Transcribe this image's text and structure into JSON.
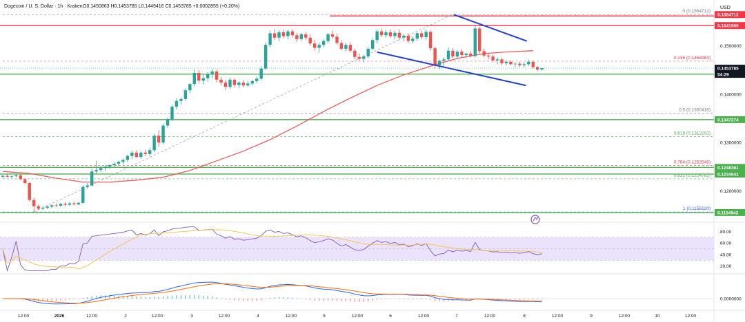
{
  "header": {
    "title": "Dogecoin / U. S. Dollar · 1h · Kraken",
    "ohlc": "O0.1450863 H0.1453785 L0.1449416 C0.1453785 +0.0002855 (+0.20%)",
    "currency": "USD"
  },
  "colors": {
    "bull": "#26a69a",
    "bear": "#ef5350",
    "red_line": "#f23645",
    "green_line": "#4caf50",
    "blue_line": "#1f3fd6",
    "ma_line": "#f05a5a",
    "fib_dash": "#b0b0b0",
    "rsi_band": "#e6dcfb",
    "rsi_line": "#7e57c2",
    "rsi_signal": "#f5c242",
    "macd_line": "#2962ff",
    "signal_line": "#ff6d00"
  },
  "chart_data": [
    {
      "type": "line",
      "name": "price",
      "x_labels": [
        "12:00",
        "2026",
        "12:00",
        "2",
        "12:00",
        "3",
        "12:00",
        "4",
        "12:00",
        "5",
        "12:00",
        "6",
        "12:00",
        "7",
        "12:00",
        "8",
        "12:00",
        "9",
        "12:00",
        "10",
        "12:00"
      ],
      "y_ticks": [
        "0.1500000",
        "0.1400000",
        "0.1300000",
        "0.1200000"
      ],
      "ylim": [
        0.1142,
        0.1575
      ],
      "candles": [
        [
          0.1229,
          0.1233,
          0.1227,
          0.1231
        ],
        [
          0.1231,
          0.1234,
          0.1228,
          0.1229
        ],
        [
          0.1229,
          0.1232,
          0.1226,
          0.123
        ],
        [
          0.123,
          0.1236,
          0.1228,
          0.1232
        ],
        [
          0.1232,
          0.1234,
          0.1222,
          0.1224
        ],
        [
          0.1224,
          0.1226,
          0.1214,
          0.1216
        ],
        [
          0.1216,
          0.1218,
          0.1178,
          0.1181
        ],
        [
          0.1181,
          0.1186,
          0.1156,
          0.1168
        ],
        [
          0.1168,
          0.1172,
          0.116,
          0.1163
        ],
        [
          0.1163,
          0.1168,
          0.116,
          0.1165
        ],
        [
          0.1165,
          0.117,
          0.1162,
          0.1167
        ],
        [
          0.1167,
          0.1172,
          0.1164,
          0.117
        ],
        [
          0.117,
          0.1174,
          0.1166,
          0.1169
        ],
        [
          0.1169,
          0.1175,
          0.1167,
          0.1173
        ],
        [
          0.1173,
          0.1176,
          0.1168,
          0.1171
        ],
        [
          0.1171,
          0.1176,
          0.1169,
          0.1174
        ],
        [
          0.1174,
          0.1177,
          0.117,
          0.1172
        ],
        [
          0.1172,
          0.1177,
          0.117,
          0.1175
        ],
        [
          0.1175,
          0.1212,
          0.1173,
          0.1208
        ],
        [
          0.1208,
          0.1216,
          0.1204,
          0.1211
        ],
        [
          0.1211,
          0.1246,
          0.1209,
          0.124
        ],
        [
          0.124,
          0.1262,
          0.1236,
          0.1243
        ],
        [
          0.1243,
          0.1252,
          0.1238,
          0.1247
        ],
        [
          0.1247,
          0.1254,
          0.1241,
          0.125
        ],
        [
          0.125,
          0.1255,
          0.1246,
          0.1253
        ],
        [
          0.1253,
          0.1259,
          0.1249,
          0.1256
        ],
        [
          0.1256,
          0.1262,
          0.1251,
          0.126
        ],
        [
          0.126,
          0.1266,
          0.1255,
          0.1264
        ],
        [
          0.1264,
          0.1275,
          0.126,
          0.1272
        ],
        [
          0.1272,
          0.1283,
          0.1266,
          0.1279
        ],
        [
          0.1279,
          0.1284,
          0.1268,
          0.127
        ],
        [
          0.127,
          0.1282,
          0.1266,
          0.1279
        ],
        [
          0.1279,
          0.1285,
          0.1272,
          0.1276
        ],
        [
          0.1276,
          0.129,
          0.1271,
          0.1284
        ],
        [
          0.1284,
          0.1318,
          0.128,
          0.1314
        ],
        [
          0.1314,
          0.1325,
          0.1292,
          0.13
        ],
        [
          0.13,
          0.1338,
          0.1296,
          0.1335
        ],
        [
          0.1335,
          0.1352,
          0.133,
          0.1348
        ],
        [
          0.1348,
          0.1378,
          0.1344,
          0.1374
        ],
        [
          0.1374,
          0.1392,
          0.1368,
          0.1386
        ],
        [
          0.1386,
          0.1394,
          0.1378,
          0.139
        ],
        [
          0.139,
          0.1412,
          0.1386,
          0.1408
        ],
        [
          0.1408,
          0.1423,
          0.1402,
          0.1421
        ],
        [
          0.1421,
          0.1452,
          0.1416,
          0.1444
        ],
        [
          0.1444,
          0.145,
          0.1422,
          0.1428
        ],
        [
          0.1428,
          0.144,
          0.142,
          0.1433
        ],
        [
          0.1433,
          0.1446,
          0.1426,
          0.1441
        ],
        [
          0.1441,
          0.1452,
          0.1432,
          0.1447
        ],
        [
          0.1447,
          0.1451,
          0.1424,
          0.143
        ],
        [
          0.143,
          0.1436,
          0.1418,
          0.1424
        ],
        [
          0.1424,
          0.143,
          0.1408,
          0.1415
        ],
        [
          0.1415,
          0.1434,
          0.1411,
          0.143
        ],
        [
          0.143,
          0.1433,
          0.1414,
          0.1419
        ],
        [
          0.1419,
          0.1427,
          0.1412,
          0.1424
        ],
        [
          0.1424,
          0.143,
          0.1414,
          0.1418
        ],
        [
          0.1418,
          0.1427,
          0.1415,
          0.1422
        ],
        [
          0.1422,
          0.143,
          0.1418,
          0.1427
        ],
        [
          0.1427,
          0.1436,
          0.1423,
          0.1432
        ],
        [
          0.1432,
          0.1458,
          0.1428,
          0.1453
        ],
        [
          0.1453,
          0.1508,
          0.145,
          0.1502
        ],
        [
          0.1502,
          0.1532,
          0.1497,
          0.1526
        ],
        [
          0.1526,
          0.1535,
          0.1512,
          0.1517
        ],
        [
          0.1517,
          0.1532,
          0.151,
          0.1528
        ],
        [
          0.1528,
          0.1534,
          0.1515,
          0.152
        ],
        [
          0.152,
          0.1534,
          0.1514,
          0.153
        ],
        [
          0.153,
          0.1535,
          0.1517,
          0.1522
        ],
        [
          0.1522,
          0.1527,
          0.1508,
          0.1514
        ],
        [
          0.1514,
          0.1527,
          0.151,
          0.1524
        ],
        [
          0.1524,
          0.153,
          0.1512,
          0.1517
        ],
        [
          0.1517,
          0.1524,
          0.15,
          0.1505
        ],
        [
          0.1505,
          0.1513,
          0.149,
          0.1496
        ],
        [
          0.1496,
          0.1507,
          0.1486,
          0.1502
        ],
        [
          0.1502,
          0.1514,
          0.1497,
          0.151
        ],
        [
          0.151,
          0.1527,
          0.1505,
          0.1524
        ],
        [
          0.1524,
          0.1532,
          0.1515,
          0.1519
        ],
        [
          0.1519,
          0.1525,
          0.1502,
          0.1506
        ],
        [
          0.1506,
          0.1512,
          0.149,
          0.1494
        ],
        [
          0.1494,
          0.1506,
          0.1488,
          0.1502
        ],
        [
          0.1502,
          0.1508,
          0.1486,
          0.149
        ],
        [
          0.149,
          0.1494,
          0.1472,
          0.1477
        ],
        [
          0.1477,
          0.1484,
          0.1468,
          0.1473
        ],
        [
          0.1473,
          0.1482,
          0.1466,
          0.1478
        ],
        [
          0.1478,
          0.1498,
          0.1474,
          0.1494
        ],
        [
          0.1494,
          0.1516,
          0.149,
          0.1512
        ],
        [
          0.1512,
          0.1534,
          0.1505,
          0.153
        ],
        [
          0.153,
          0.1536,
          0.1518,
          0.1522
        ],
        [
          0.1522,
          0.1532,
          0.1517,
          0.1528
        ],
        [
          0.1528,
          0.1534,
          0.1516,
          0.152
        ],
        [
          0.152,
          0.1531,
          0.1514,
          0.1527
        ],
        [
          0.1527,
          0.1534,
          0.1512,
          0.1517
        ],
        [
          0.1517,
          0.1525,
          0.1509,
          0.1521
        ],
        [
          0.1521,
          0.1526,
          0.1506,
          0.151
        ],
        [
          0.151,
          0.152,
          0.1505,
          0.1515
        ],
        [
          0.1515,
          0.1529,
          0.151,
          0.1526
        ],
        [
          0.1526,
          0.1532,
          0.1514,
          0.1518
        ],
        [
          0.1518,
          0.1534,
          0.1512,
          0.1529
        ],
        [
          0.1529,
          0.1533,
          0.149,
          0.1495
        ],
        [
          0.1495,
          0.1498,
          0.1452,
          0.146
        ],
        [
          0.146,
          0.1472,
          0.1452,
          0.1469
        ],
        [
          0.1469,
          0.1476,
          0.1458,
          0.1472
        ],
        [
          0.1472,
          0.1497,
          0.1468,
          0.149
        ],
        [
          0.149,
          0.1495,
          0.1474,
          0.1478
        ],
        [
          0.1478,
          0.1492,
          0.1472,
          0.1488
        ],
        [
          0.1488,
          0.1493,
          0.1476,
          0.1481
        ],
        [
          0.1481,
          0.1486,
          0.1474,
          0.1484
        ],
        [
          0.1484,
          0.1489,
          0.1476,
          0.1479
        ],
        [
          0.1479,
          0.1542,
          0.1476,
          0.1536
        ],
        [
          0.1536,
          0.154,
          0.1484,
          0.1489
        ],
        [
          0.1489,
          0.1494,
          0.1476,
          0.148
        ],
        [
          0.148,
          0.1485,
          0.1472,
          0.1478
        ],
        [
          0.1478,
          0.1482,
          0.1466,
          0.147
        ],
        [
          0.147,
          0.1476,
          0.1462,
          0.1472
        ],
        [
          0.1472,
          0.1476,
          0.146,
          0.1464
        ],
        [
          0.1464,
          0.147,
          0.1459,
          0.1467
        ],
        [
          0.1467,
          0.147,
          0.146,
          0.1462
        ],
        [
          0.1462,
          0.1466,
          0.1456,
          0.1463
        ],
        [
          0.1463,
          0.1467,
          0.1456,
          0.146
        ],
        [
          0.146,
          0.1466,
          0.1455,
          0.1462
        ],
        [
          0.1462,
          0.1471,
          0.1458,
          0.1467
        ],
        [
          0.1467,
          0.1469,
          0.1452,
          0.1456
        ],
        [
          0.1456,
          0.1458,
          0.1448,
          0.1451
        ],
        [
          0.1451,
          0.1454,
          0.1449,
          0.1454
        ]
      ],
      "ma_series": [
        [
          0,
          0.124
        ],
        [
          6,
          0.1236
        ],
        [
          12,
          0.1226
        ],
        [
          18,
          0.1218
        ],
        [
          24,
          0.1218
        ],
        [
          30,
          0.1222
        ],
        [
          36,
          0.1228
        ],
        [
          42,
          0.1242
        ],
        [
          48,
          0.1262
        ],
        [
          54,
          0.1282
        ],
        [
          60,
          0.1306
        ],
        [
          66,
          0.1334
        ],
        [
          72,
          0.1364
        ],
        [
          78,
          0.1392
        ],
        [
          84,
          0.1418
        ],
        [
          90,
          0.144
        ],
        [
          96,
          0.1458
        ],
        [
          102,
          0.1474
        ],
        [
          108,
          0.1484
        ],
        [
          114,
          0.1488
        ],
        [
          119,
          0.149
        ]
      ],
      "horizontal_levels": [
        {
          "label": "0.1541960",
          "value": 0.154196,
          "color": "#f23645",
          "role": "resistance"
        },
        {
          "label": "0.1441346",
          "value": 0.1441346,
          "color": "#4caf50",
          "role": "support"
        },
        {
          "label": "0.1347274",
          "value": 0.1347274,
          "color": "#4caf50",
          "role": "support"
        },
        {
          "label": "0.1248361",
          "value": 0.1248361,
          "color": "#4caf50",
          "role": "support"
        },
        {
          "label": "0.1234641",
          "value": 0.1234641,
          "color": "#4caf50",
          "role": "support"
        },
        {
          "label": "0.1154942",
          "value": 0.1154942,
          "color": "#4caf50",
          "role": "support"
        }
      ],
      "fib_levels": [
        {
          "label": "0 (0.1564712)",
          "value": 0.1564712,
          "color": "#787b86"
        },
        {
          "label": "0.236 (0.1468284)",
          "value": 0.1468284,
          "color": "#f23645"
        },
        {
          "label": "0.5 (0.1360416)",
          "value": 0.1360416,
          "color": "#787b86"
        },
        {
          "label": "0.618 (0.1312202)",
          "value": 0.1312202,
          "color": "#4caf50"
        },
        {
          "label": "0.764 (0.1252548)",
          "value": 0.1252548,
          "color": "#f23645"
        },
        {
          "label": "0.832 (0.1224763)",
          "value": 0.1224763,
          "color": "#4caf50"
        },
        {
          "label": "1 (0.1156120)",
          "value": 0.115612,
          "color": "#2962ff"
        }
      ],
      "channel": {
        "upper": [
          [
            101.2,
            0.1564712
          ],
          [
            117.6,
            0.151
          ]
        ],
        "lower": [
          [
            84.0,
            0.1487
          ],
          [
            117.4,
            0.1418
          ]
        ]
      },
      "fib_diagonal": [
        [
          7.0,
          0.115612
        ],
        [
          100.9,
          0.1564712
        ]
      ],
      "price_tag": {
        "value": 0.1453785,
        "label": "0.1453785",
        "countdown": "54:29"
      },
      "top_tag": {
        "value": 0.1564712,
        "label": "0.1564712"
      }
    },
    {
      "type": "line",
      "name": "rsi",
      "y_ticks": [
        "80.00",
        "60.00",
        "40.00",
        "20.00"
      ],
      "ylim": [
        10,
        90
      ],
      "band": [
        30,
        70
      ]
    },
    {
      "type": "line",
      "name": "macd",
      "y_ticks": [
        "0.0000000"
      ]
    }
  ]
}
